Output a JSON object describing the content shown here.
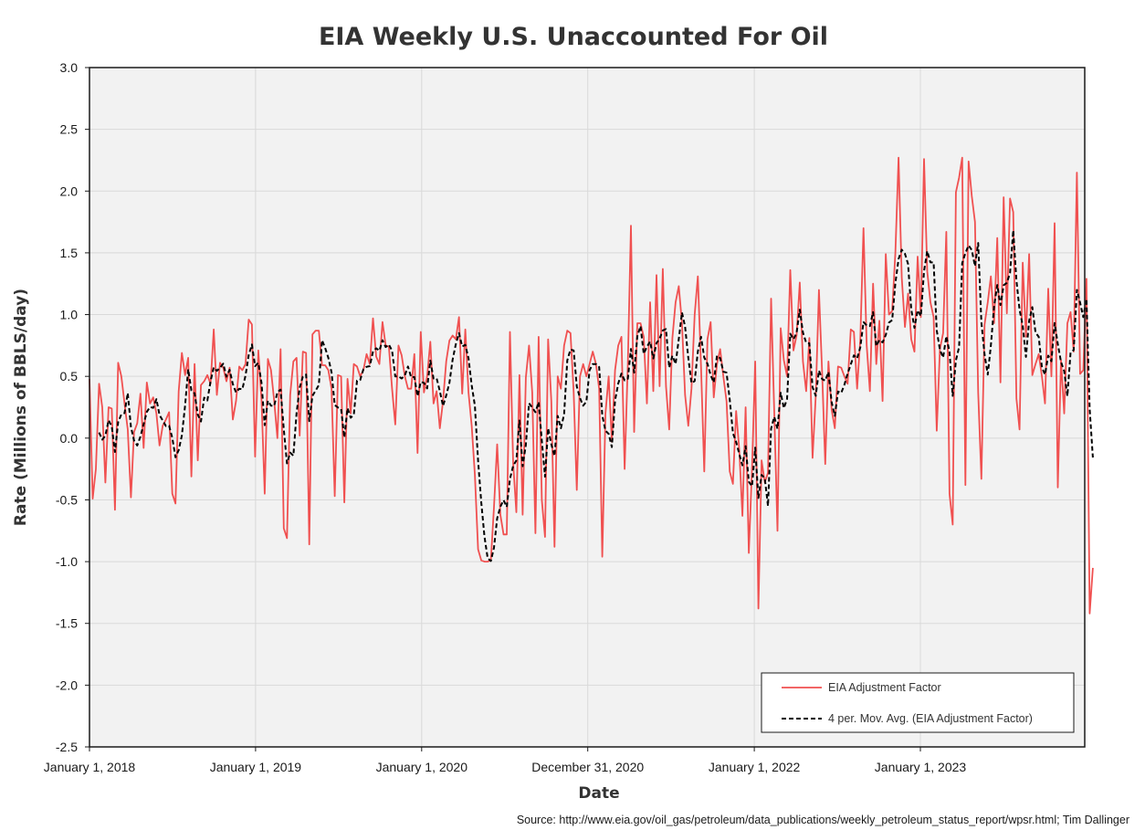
{
  "chart_data": {
    "type": "line",
    "title": "EIA Weekly U.S. Unaccounted For Oil",
    "xlabel": "Date",
    "ylabel": "Rate (Millions of BBLS/day)",
    "ylim": [
      -2.5,
      3.0
    ],
    "yticks": [
      "3.0",
      "2.5",
      "2.0",
      "1.5",
      "1.0",
      "0.5",
      "0.0",
      "-0.5",
      "-1.0",
      "-1.5",
      "-2.0",
      "-2.5"
    ],
    "xticks": [
      "January 1, 2018",
      "January 1, 2019",
      "January 1, 2020",
      "December 31, 2020",
      "January 1, 2022",
      "January 1, 2023"
    ],
    "x_start": "January 1, 2018",
    "x_interval": "weekly",
    "grid": true,
    "legend_position": "bottom-right",
    "series": [
      {
        "name": "EIA Adjustment Factor",
        "color": "#f05050",
        "style": "solid",
        "values": [
          0.48,
          -0.49,
          -0.25,
          0.44,
          0.25,
          -0.36,
          0.25,
          0.24,
          -0.58,
          0.61,
          0.5,
          0.28,
          0.07,
          -0.48,
          0.05,
          0.12,
          0.36,
          -0.08,
          0.45,
          0.28,
          0.33,
          0.2,
          -0.06,
          0.1,
          0.15,
          0.21,
          -0.45,
          -0.53,
          0.38,
          0.69,
          0.51,
          0.65,
          -0.31,
          0.6,
          -0.18,
          0.43,
          0.46,
          0.51,
          0.44,
          0.88,
          0.35,
          0.61,
          0.57,
          0.46,
          0.57,
          0.15,
          0.3,
          0.58,
          0.55,
          0.6,
          0.96,
          0.92,
          -0.15,
          0.71,
          0.31,
          -0.45,
          0.64,
          0.55,
          0.3,
          0.0,
          0.72,
          -0.73,
          -0.81,
          0.35,
          0.62,
          0.65,
          0.02,
          0.7,
          0.69,
          -0.86,
          0.84,
          0.87,
          0.87,
          0.59,
          0.59,
          0.55,
          0.4,
          -0.47,
          0.51,
          0.5,
          -0.52,
          0.48,
          0.2,
          0.6,
          0.58,
          0.5,
          0.55,
          0.68,
          0.6,
          0.97,
          0.66,
          0.6,
          0.94,
          0.75,
          0.74,
          0.4,
          0.11,
          0.75,
          0.67,
          0.5,
          0.4,
          0.4,
          0.68,
          -0.12,
          0.86,
          0.37,
          0.5,
          0.78,
          0.28,
          0.38,
          0.08,
          0.3,
          0.62,
          0.79,
          0.83,
          0.8,
          0.98,
          0.36,
          0.88,
          0.37,
          0.1,
          -0.3,
          -0.9,
          -0.99,
          -1.0,
          -1.0,
          -0.99,
          -0.56,
          -0.05,
          -0.62,
          -0.78,
          -0.78,
          0.86,
          -0.2,
          -0.6,
          0.51,
          -0.62,
          0.49,
          0.75,
          0.37,
          -0.77,
          0.82,
          -0.5,
          -0.8,
          0.8,
          0.3,
          -0.88,
          0.5,
          0.4,
          0.75,
          0.87,
          0.85,
          0.37,
          -0.42,
          0.5,
          0.6,
          0.5,
          0.6,
          0.7,
          0.6,
          0.4,
          -0.96,
          0.2,
          0.5,
          -0.03,
          0.55,
          0.75,
          0.82,
          -0.25,
          0.6,
          1.72,
          0.05,
          0.93,
          0.93,
          0.82,
          0.28,
          1.1,
          0.38,
          1.32,
          0.42,
          1.37,
          0.42,
          0.07,
          0.81,
          1.1,
          1.23,
          0.93,
          0.35,
          0.1,
          0.4,
          1.0,
          1.31,
          0.57,
          -0.27,
          0.8,
          0.94,
          0.33,
          0.6,
          0.72,
          0.5,
          0.3,
          -0.27,
          -0.37,
          0.22,
          -0.1,
          -0.63,
          0.25,
          -0.93,
          -0.25,
          0.62,
          -1.38,
          -0.18,
          -0.36,
          -0.28,
          1.13,
          0.2,
          -0.75,
          0.89,
          0.63,
          0.5,
          1.36,
          0.71,
          0.83,
          1.26,
          0.62,
          0.38,
          0.81,
          -0.16,
          0.34,
          1.2,
          0.53,
          -0.21,
          0.62,
          0.23,
          0.08,
          0.58,
          0.57,
          0.5,
          0.44,
          0.88,
          0.86,
          0.4,
          0.8,
          1.7,
          0.75,
          0.38,
          1.25,
          0.6,
          0.95,
          0.3,
          1.49,
          1.0,
          1.03,
          1.5,
          2.27,
          1.3,
          0.9,
          1.17,
          0.8,
          0.7,
          1.47,
          0.98,
          2.26,
          1.35,
          1.1,
          0.98,
          0.06,
          0.72,
          0.85,
          1.67,
          -0.45,
          -0.7,
          1.99,
          2.11,
          2.27,
          -0.38,
          2.24,
          1.96,
          1.75,
          0.37,
          -0.33,
          0.92,
          1.1,
          1.31,
          0.93,
          1.62,
          0.45,
          1.95,
          1.01,
          1.94,
          1.83,
          0.32,
          0.07,
          1.42,
          0.82,
          1.49,
          0.51,
          0.6,
          0.68,
          0.5,
          0.28,
          1.21,
          0.5,
          1.74,
          -0.4,
          0.63,
          0.2,
          0.93,
          1.02,
          0.7,
          2.15,
          0.52,
          0.55,
          1.29,
          -1.42,
          -1.05
        ]
      },
      {
        "name": "4 per. Mov. Avg. (EIA Adjustment Factor)",
        "color": "#000000",
        "style": "dashed",
        "window": 4
      }
    ]
  },
  "source": "Source: http://www.eia.gov/oil_gas/petroleum/data_publications/weekly_petroleum_status_report/wpsr.html; Tim Dallinger"
}
